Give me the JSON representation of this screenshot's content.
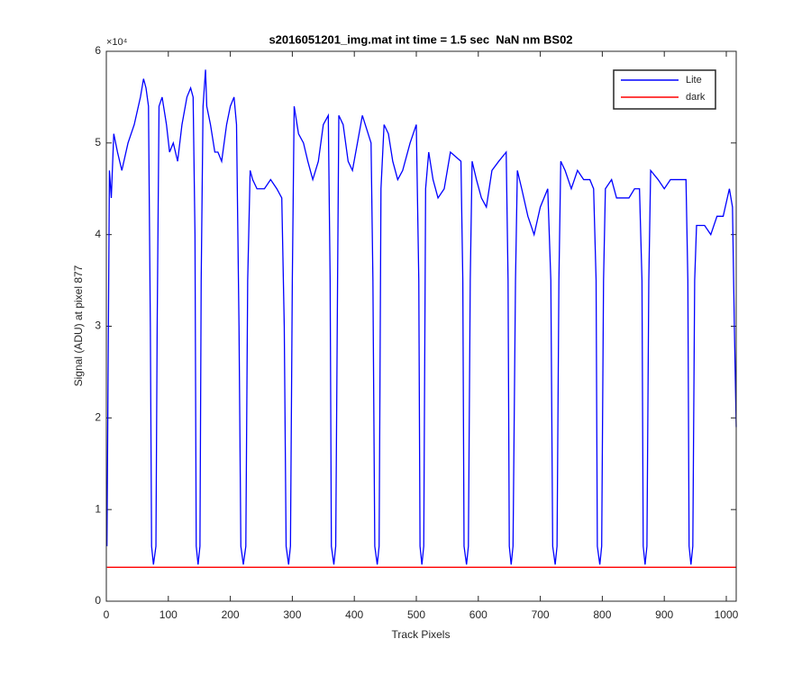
{
  "chart_data": {
    "type": "line",
    "title": "s2016051201_img.mat int time = 1.5 sec  NaN nm BS02",
    "x_label": "Track Pixels",
    "y_label": "Signal (ADU) at pixel 877",
    "y_exponent_label": "×10⁴",
    "xlim": [
      0,
      1016
    ],
    "xticks": [
      0,
      100,
      200,
      300,
      400,
      500,
      600,
      700,
      800,
      900,
      1000
    ],
    "ylim": [
      0,
      6
    ],
    "yticks": [
      0,
      1,
      2,
      3,
      4,
      5,
      6
    ],
    "legend": "upper right",
    "series": [
      {
        "name": "Lite",
        "color": "#0000ff",
        "x": [
          1,
          5,
          8,
          12,
          18,
          25,
          35,
          45,
          55,
          60,
          64,
          68,
          71,
          73,
          76,
          80,
          82,
          85,
          90,
          97,
          102,
          108,
          115,
          122,
          130,
          136,
          140,
          143,
          145,
          148,
          151,
          153,
          156,
          160,
          162,
          168,
          175,
          180,
          186,
          194,
          200,
          206,
          210,
          214,
          217,
          221,
          225,
          228,
          232,
          236,
          243,
          255,
          265,
          275,
          283,
          287,
          290,
          294,
          297,
          300,
          303,
          310,
          318,
          325,
          333,
          342,
          350,
          358,
          361,
          363,
          367,
          370,
          373,
          375,
          382,
          390,
          397,
          405,
          413,
          427,
          430,
          433,
          437,
          440,
          443,
          448,
          455,
          462,
          470,
          478,
          490,
          500,
          504,
          506,
          509,
          512,
          515,
          520,
          527,
          535,
          545,
          555,
          572,
          575,
          577,
          581,
          584,
          587,
          590,
          597,
          605,
          613,
          622,
          633,
          645,
          648,
          650,
          653,
          656,
          660,
          663,
          670,
          680,
          690,
          700,
          712,
          717,
          720,
          724,
          727,
          730,
          733,
          740,
          750,
          760,
          770,
          780,
          786,
          790,
          792,
          796,
          799,
          802,
          805,
          815,
          823,
          833,
          843,
          852,
          860,
          864,
          866,
          869,
          872,
          875,
          878,
          890,
          900,
          910,
          925,
          935,
          938,
          940,
          943,
          946,
          949,
          952,
          965,
          975,
          985,
          995,
          1005,
          1010,
          1013,
          1016
        ],
        "values": [
          0.6,
          4.7,
          4.4,
          5.1,
          4.9,
          4.7,
          5.0,
          5.2,
          5.5,
          5.7,
          5.6,
          5.4,
          3.0,
          0.6,
          0.4,
          0.6,
          3.0,
          5.4,
          5.5,
          5.2,
          4.9,
          5.0,
          4.8,
          5.2,
          5.5,
          5.6,
          5.5,
          4.0,
          0.6,
          0.4,
          0.6,
          3.5,
          5.4,
          5.8,
          5.4,
          5.2,
          4.9,
          4.9,
          4.8,
          5.2,
          5.4,
          5.5,
          5.2,
          3.0,
          0.6,
          0.4,
          0.6,
          3.5,
          4.7,
          4.6,
          4.5,
          4.5,
          4.6,
          4.5,
          4.4,
          3.0,
          0.6,
          0.4,
          0.6,
          3.5,
          5.4,
          5.1,
          5.0,
          4.8,
          4.6,
          4.8,
          5.2,
          5.3,
          3.5,
          0.6,
          0.4,
          0.6,
          3.5,
          5.3,
          5.2,
          4.8,
          4.7,
          5.0,
          5.3,
          5.0,
          3.5,
          0.6,
          0.4,
          0.6,
          4.5,
          5.2,
          5.1,
          4.8,
          4.6,
          4.7,
          5.0,
          5.2,
          3.5,
          0.6,
          0.4,
          0.6,
          4.5,
          4.9,
          4.6,
          4.4,
          4.5,
          4.9,
          4.8,
          3.5,
          0.6,
          0.4,
          0.6,
          3.5,
          4.8,
          4.6,
          4.4,
          4.3,
          4.7,
          4.8,
          4.9,
          3.5,
          0.6,
          0.4,
          0.6,
          3.5,
          4.7,
          4.5,
          4.2,
          4.0,
          4.3,
          4.5,
          3.5,
          0.6,
          0.4,
          0.6,
          3.5,
          4.8,
          4.7,
          4.5,
          4.7,
          4.6,
          4.6,
          4.5,
          3.5,
          0.6,
          0.4,
          0.6,
          3.5,
          4.5,
          4.6,
          4.4,
          4.4,
          4.4,
          4.5,
          4.5,
          3.5,
          0.6,
          0.4,
          0.6,
          3.5,
          4.7,
          4.6,
          4.5,
          4.6,
          4.6,
          4.6,
          3.5,
          0.6,
          0.4,
          0.6,
          3.5,
          4.1,
          4.1,
          4.0,
          4.2,
          4.2,
          4.5,
          4.3,
          3.0,
          1.9
        ]
      },
      {
        "name": "dark",
        "color": "#ff0000",
        "x": [
          1,
          1016
        ],
        "values": [
          0.37,
          0.37
        ]
      }
    ]
  }
}
